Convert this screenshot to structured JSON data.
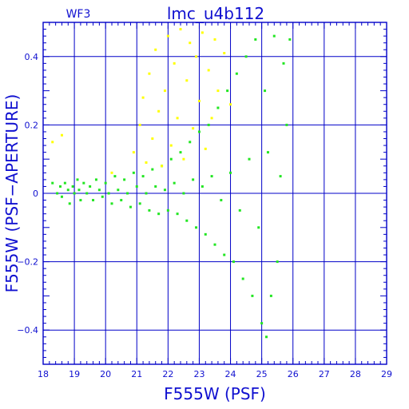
{
  "chart_data": {
    "type": "scatter",
    "title": "lmc_u4b112",
    "subtitle": "WF3",
    "xlabel": "F555W (PSF)",
    "ylabel": "F555W (PSF−APERTURE)",
    "xlim": [
      18,
      29
    ],
    "ylim": [
      -0.5,
      0.5
    ],
    "x_ticks": [
      18,
      19,
      20,
      21,
      22,
      23,
      24,
      25,
      26,
      27,
      28,
      29
    ],
    "y_ticks": [
      -0.4,
      -0.2,
      0,
      0.2,
      0.4
    ],
    "y_tick_labels": [
      "−0.4",
      "−0.2",
      "0",
      "0.2",
      "0.4"
    ],
    "grid": true,
    "legend": "none",
    "series": [
      {
        "color": "#22e622",
        "points": [
          [
            18.3,
            0.03
          ],
          [
            18.45,
            0.0
          ],
          [
            18.55,
            0.02
          ],
          [
            18.6,
            -0.01
          ],
          [
            18.7,
            0.03
          ],
          [
            18.8,
            0.01
          ],
          [
            18.85,
            -0.03
          ],
          [
            18.95,
            0.02
          ],
          [
            19.0,
            0.0
          ],
          [
            19.1,
            0.04
          ],
          [
            19.15,
            0.01
          ],
          [
            19.2,
            -0.02
          ],
          [
            19.3,
            0.03
          ],
          [
            19.4,
            0.0
          ],
          [
            19.5,
            0.02
          ],
          [
            19.6,
            -0.02
          ],
          [
            19.7,
            0.04
          ],
          [
            19.8,
            0.01
          ],
          [
            19.9,
            -0.01
          ],
          [
            20.0,
            0.03
          ],
          [
            20.1,
            0.0
          ],
          [
            20.2,
            -0.03
          ],
          [
            20.3,
            0.05
          ],
          [
            20.4,
            0.01
          ],
          [
            20.5,
            -0.02
          ],
          [
            20.6,
            0.04
          ],
          [
            20.7,
            0.0
          ],
          [
            20.8,
            -0.04
          ],
          [
            20.9,
            0.06
          ],
          [
            21.0,
            0.02
          ],
          [
            21.1,
            -0.03
          ],
          [
            21.2,
            0.05
          ],
          [
            21.3,
            0.0
          ],
          [
            21.4,
            -0.05
          ],
          [
            21.5,
            0.07
          ],
          [
            21.6,
            0.02
          ],
          [
            21.7,
            -0.06
          ],
          [
            21.8,
            0.08
          ],
          [
            21.9,
            0.01
          ],
          [
            22.0,
            -0.05
          ],
          [
            22.1,
            0.1
          ],
          [
            22.2,
            0.03
          ],
          [
            22.3,
            -0.06
          ],
          [
            22.4,
            0.12
          ],
          [
            22.5,
            0.0
          ],
          [
            22.6,
            -0.08
          ],
          [
            22.7,
            0.15
          ],
          [
            22.8,
            0.04
          ],
          [
            22.9,
            -0.1
          ],
          [
            23.0,
            0.18
          ],
          [
            23.1,
            0.02
          ],
          [
            23.2,
            -0.12
          ],
          [
            23.3,
            0.2
          ],
          [
            23.4,
            0.05
          ],
          [
            23.5,
            -0.15
          ],
          [
            23.6,
            0.25
          ],
          [
            23.7,
            -0.02
          ],
          [
            23.8,
            -0.18
          ],
          [
            23.9,
            0.3
          ],
          [
            24.0,
            0.06
          ],
          [
            24.1,
            -0.2
          ],
          [
            24.2,
            0.35
          ],
          [
            24.3,
            -0.05
          ],
          [
            24.4,
            -0.25
          ],
          [
            24.5,
            0.4
          ],
          [
            24.6,
            0.1
          ],
          [
            24.7,
            -0.3
          ],
          [
            24.8,
            0.45
          ],
          [
            24.9,
            -0.1
          ],
          [
            25.0,
            -0.38
          ],
          [
            25.1,
            0.3
          ],
          [
            25.15,
            -0.42
          ],
          [
            25.2,
            0.12
          ],
          [
            25.3,
            -0.3
          ],
          [
            25.4,
            0.46
          ],
          [
            25.5,
            -0.2
          ],
          [
            25.6,
            0.05
          ],
          [
            25.7,
            0.38
          ],
          [
            25.8,
            0.2
          ],
          [
            25.9,
            0.45
          ]
        ]
      },
      {
        "color": "#ffff00",
        "points": [
          [
            18.3,
            0.15
          ],
          [
            18.6,
            0.17
          ],
          [
            20.2,
            0.06
          ],
          [
            20.9,
            0.12
          ],
          [
            21.1,
            0.2
          ],
          [
            21.2,
            0.28
          ],
          [
            21.3,
            0.09
          ],
          [
            21.4,
            0.35
          ],
          [
            21.5,
            0.16
          ],
          [
            21.6,
            0.42
          ],
          [
            21.7,
            0.24
          ],
          [
            21.8,
            0.08
          ],
          [
            21.9,
            0.3
          ],
          [
            22.0,
            0.46
          ],
          [
            22.1,
            0.14
          ],
          [
            22.2,
            0.38
          ],
          [
            22.3,
            0.22
          ],
          [
            22.4,
            0.48
          ],
          [
            22.5,
            0.1
          ],
          [
            22.6,
            0.33
          ],
          [
            22.7,
            0.44
          ],
          [
            22.8,
            0.19
          ],
          [
            22.9,
            0.4
          ],
          [
            23.0,
            0.27
          ],
          [
            23.1,
            0.47
          ],
          [
            23.2,
            0.13
          ],
          [
            23.3,
            0.36
          ],
          [
            23.4,
            0.22
          ],
          [
            23.5,
            0.45
          ],
          [
            23.6,
            0.3
          ],
          [
            23.8,
            0.41
          ],
          [
            24.0,
            0.26
          ]
        ]
      }
    ]
  }
}
